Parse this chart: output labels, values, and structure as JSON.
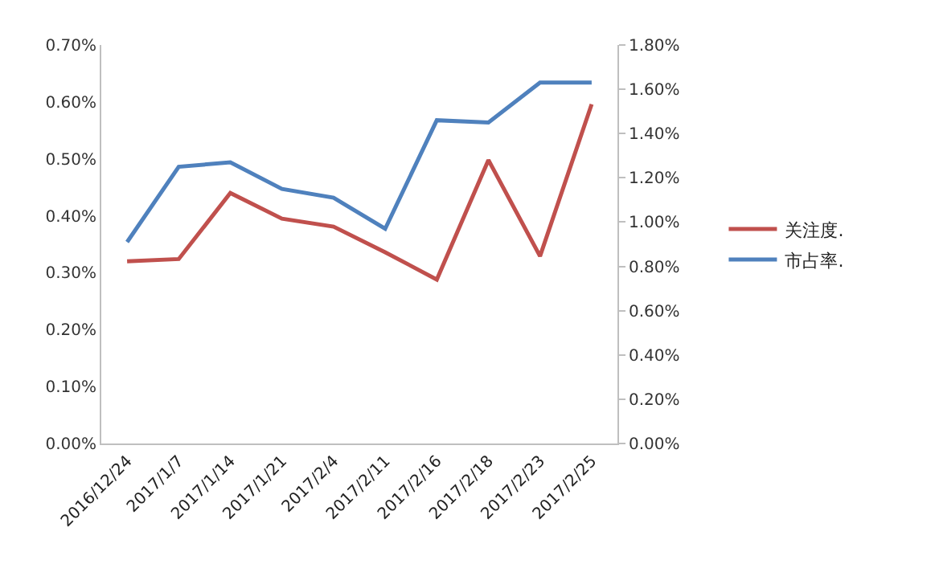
{
  "chart_data": {
    "type": "line",
    "categories": [
      "2016/12/24",
      "2017/1/7",
      "2017/1/14",
      "2017/1/21",
      "2017/2/4",
      "2017/2/11",
      "2017/2/16",
      "2017/2/18",
      "2017/2/23",
      "2017/2/25"
    ],
    "series": [
      {
        "name": "关注度.",
        "color": "#c0504d",
        "values": [
          0.32,
          0.324,
          0.44,
          0.395,
          0.381,
          0.336,
          0.288,
          0.498,
          0.329,
          0.596
        ]
      },
      {
        "name": "市占率.",
        "color": "#4f81bd",
        "axis": "y2",
        "values": [
          0.91,
          1.25,
          1.27,
          1.15,
          1.11,
          0.97,
          1.46,
          1.45,
          1.63,
          1.63
        ]
      }
    ],
    "ylim": [
      0,
      0.7
    ],
    "yticks": [
      {
        "value": 0,
        "label": "0.00%"
      },
      {
        "value": 0.1,
        "label": "0.10%"
      },
      {
        "value": 0.2,
        "label": "0.20%"
      },
      {
        "value": 0.3,
        "label": "0.30%"
      },
      {
        "value": 0.4,
        "label": "0.40%"
      },
      {
        "value": 0.5,
        "label": "0.50%"
      },
      {
        "value": 0.6,
        "label": "0.60%"
      },
      {
        "value": 0.7,
        "label": "0.70%"
      }
    ],
    "y2lim": [
      0,
      1.8
    ],
    "y2ticks": [
      {
        "value": 0,
        "label": "0.00%"
      },
      {
        "value": 0.2,
        "label": "0.20%"
      },
      {
        "value": 0.4,
        "label": "0.40%"
      },
      {
        "value": 0.6,
        "label": "0.60%"
      },
      {
        "value": 0.8,
        "label": "0.80%"
      },
      {
        "value": 1.0,
        "label": "1.00%"
      },
      {
        "value": 1.2,
        "label": "1.20%"
      },
      {
        "value": 1.4,
        "label": "1.40%"
      },
      {
        "value": 1.6,
        "label": "1.60%"
      },
      {
        "value": 1.8,
        "label": "1.80%"
      }
    ],
    "grid": false,
    "legend": "right",
    "marker": "none",
    "line_style": "solid"
  }
}
